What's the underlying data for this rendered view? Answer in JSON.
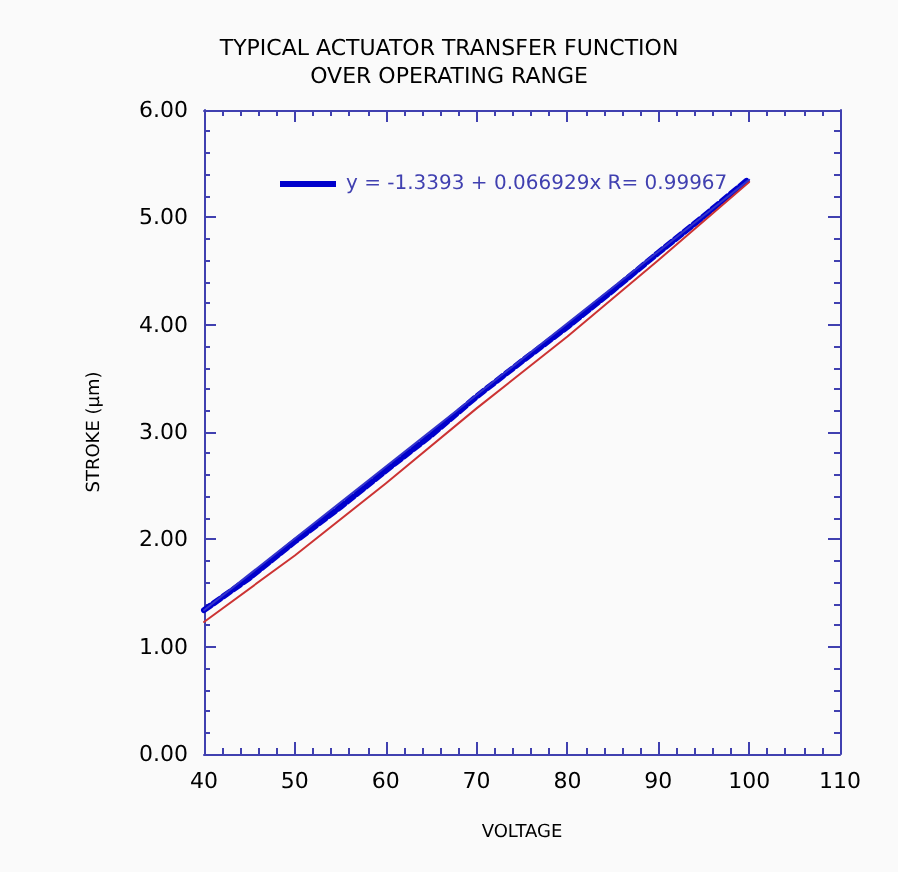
{
  "chart_data": {
    "type": "line",
    "title": "TYPICAL ACTUATOR TRANSFER FUNCTION\nOVER OPERATING RANGE",
    "xlabel": "VOLTAGE",
    "ylabel": "STROKE (μm)",
    "x": [
      40,
      45,
      50,
      55,
      60,
      65,
      70,
      75,
      80,
      85,
      90,
      95,
      100
    ],
    "series": [
      {
        "name": "y = -1.3393 + 0.066929x R= 0.99967",
        "color": "#0000cc",
        "line_style": "dashed",
        "values": [
          1.34,
          1.64,
          1.98,
          2.3,
          2.64,
          2.97,
          3.33,
          3.66,
          3.98,
          4.32,
          4.67,
          5.01,
          5.36
        ]
      },
      {
        "color": "#cc3333",
        "line_style": "solid",
        "x": [
          40,
          50,
          60,
          70,
          80,
          90,
          100
        ],
        "values": [
          1.23,
          1.85,
          2.52,
          3.22,
          3.89,
          4.6,
          5.33
        ]
      },
      {
        "color": "#3333cc",
        "line_style": "solid",
        "x": [
          40,
          100
        ],
        "values": [
          1.34,
          5.35
        ]
      }
    ],
    "xlim": [
      40,
      110
    ],
    "xticks": [
      40,
      50,
      60,
      70,
      80,
      90,
      100,
      110
    ],
    "ylim": [
      0,
      6
    ],
    "yticks": [
      {
        "value": 0,
        "label": "0.00"
      },
      {
        "value": 1,
        "label": "1.00"
      },
      {
        "value": 2,
        "label": "2.00"
      },
      {
        "value": 3,
        "label": "3.00"
      },
      {
        "value": 4,
        "label": "4.00"
      },
      {
        "value": 5,
        "label": "5.00"
      },
      {
        "value": 6,
        "label": "6.00"
      }
    ],
    "grid": false,
    "legend": "top left",
    "marker": "none"
  }
}
